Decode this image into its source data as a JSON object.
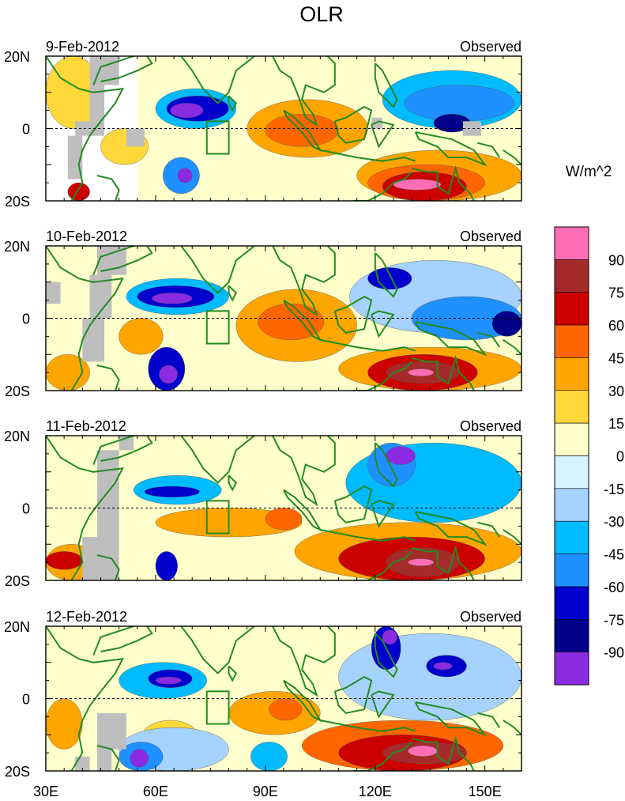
{
  "chart_data": {
    "type": "heatmap",
    "title": "OLR",
    "units_label": "W/m^2",
    "panel_label_right": "Observed",
    "x_tick_labels": [
      "30E",
      "60E",
      "90E",
      "120E",
      "150E"
    ],
    "x_tick_values": [
      30,
      60,
      90,
      120,
      150
    ],
    "xlim": [
      30,
      160
    ],
    "y_tick_labels": [
      "20N",
      "0",
      "20S"
    ],
    "y_tick_values": [
      20,
      0,
      -20
    ],
    "ylim": [
      -20,
      20
    ],
    "colorbar": {
      "labels": [
        "90",
        "75",
        "60",
        "45",
        "30",
        "15",
        "0",
        "-15",
        "-30",
        "-45",
        "-60",
        "-75",
        "-90"
      ],
      "levels": [
        90,
        75,
        60,
        45,
        30,
        15,
        0,
        -15,
        -30,
        -45,
        -60,
        -75,
        -90
      ],
      "colors": [
        "#ff6eb4",
        "#a52a2a",
        "#cc0000",
        "#ff6600",
        "#ffa500",
        "#ffd83a",
        "#ffffcc",
        "#d4f4ff",
        "#a6d2ff",
        "#00bbff",
        "#1e90ff",
        "#0000cd",
        "#00008b",
        "#8a2be2"
      ]
    },
    "missing_color": "#bebebe",
    "coast_color": "#228b22",
    "box_region": {
      "lon": [
        74,
        80
      ],
      "lat": [
        -7,
        2
      ]
    },
    "panels": [
      {
        "date": "9-Feb-2012",
        "blobs": [
          {
            "lon": [
              55,
              160
            ],
            "lat": [
              -20,
              20
            ],
            "v": 10
          },
          {
            "lon": [
              30,
              45
            ],
            "lat": [
              0,
              20
            ],
            "v": 25
          },
          {
            "lon": [
              45,
              58
            ],
            "lat": [
              -10,
              0
            ],
            "v": 28
          },
          {
            "lon": [
              85,
              118
            ],
            "lat": [
              -8,
              8
            ],
            "v": 32
          },
          {
            "lon": [
              90,
              110
            ],
            "lat": [
              -5,
              4
            ],
            "v": 48
          },
          {
            "lon": [
              115,
              160
            ],
            "lat": [
              -20,
              -6
            ],
            "v": 35
          },
          {
            "lon": [
              118,
              150
            ],
            "lat": [
              -20,
              -10
            ],
            "v": 55
          },
          {
            "lon": [
              122,
              145
            ],
            "lat": [
              -20,
              -12
            ],
            "v": 72
          },
          {
            "lon": [
              125,
              138
            ],
            "lat": [
              -17,
              -14
            ],
            "v": 95
          },
          {
            "lon": [
              60,
              82
            ],
            "lat": [
              0,
              11
            ],
            "v": -35
          },
          {
            "lon": [
              63,
              80
            ],
            "lat": [
              2,
              9
            ],
            "v": -65
          },
          {
            "lon": [
              64,
              73
            ],
            "lat": [
              3,
              7
            ],
            "v": -95
          },
          {
            "lon": [
              62,
              72
            ],
            "lat": [
              -18,
              -8
            ],
            "v": -60
          },
          {
            "lon": [
              66,
              70
            ],
            "lat": [
              -15,
              -11
            ],
            "v": -95
          },
          {
            "lon": [
              122,
              160
            ],
            "lat": [
              0,
              16
            ],
            "v": -32
          },
          {
            "lon": [
              128,
              158
            ],
            "lat": [
              2,
              12
            ],
            "v": -55
          },
          {
            "lon": [
              136,
              146
            ],
            "lat": [
              -1,
              4
            ],
            "v": -80
          },
          {
            "lon": [
              36,
              42
            ],
            "lat": [
              -20,
              -15
            ],
            "v": 62
          }
        ],
        "missing": [
          {
            "lon": [
              42,
              50
            ],
            "lat": [
              12,
              20
            ]
          },
          {
            "lon": [
              42,
              46
            ],
            "lat": [
              2,
              12
            ]
          },
          {
            "lon": [
              38,
              46
            ],
            "lat": [
              -2,
              2
            ]
          },
          {
            "lon": [
              36,
              40
            ],
            "lat": [
              -14,
              -2
            ]
          },
          {
            "lon": [
              52,
              57
            ],
            "lat": [
              -5,
              0
            ]
          },
          {
            "lon": [
              144,
              149
            ],
            "lat": [
              -2,
              2
            ]
          },
          {
            "lon": [
              119,
              122
            ],
            "lat": [
              0,
              3
            ]
          }
        ]
      },
      {
        "date": "10-Feb-2012",
        "blobs": [
          {
            "lon": [
              30,
              160
            ],
            "lat": [
              -20,
              20
            ],
            "v": 8
          },
          {
            "lon": [
              30,
              42
            ],
            "lat": [
              -20,
              -10
            ],
            "v": 35
          },
          {
            "lon": [
              50,
              62
            ],
            "lat": [
              -10,
              0
            ],
            "v": 30
          },
          {
            "lon": [
              82,
              115
            ],
            "lat": [
              -12,
              8
            ],
            "v": 38
          },
          {
            "lon": [
              88,
              106
            ],
            "lat": [
              -6,
              4
            ],
            "v": 58
          },
          {
            "lon": [
              110,
              160
            ],
            "lat": [
              -20,
              -8
            ],
            "v": 40
          },
          {
            "lon": [
              118,
              148
            ],
            "lat": [
              -20,
              -10
            ],
            "v": 60
          },
          {
            "lon": [
              123,
              143
            ],
            "lat": [
              -18,
              -12
            ],
            "v": 78
          },
          {
            "lon": [
              129,
              136
            ],
            "lat": [
              -16,
              -14
            ],
            "v": 95
          },
          {
            "lon": [
              52,
              80
            ],
            "lat": [
              1,
              11
            ],
            "v": -40
          },
          {
            "lon": [
              55,
              76
            ],
            "lat": [
              3,
              9
            ],
            "v": -70
          },
          {
            "lon": [
              59,
              70
            ],
            "lat": [
              4,
              7
            ],
            "v": -95
          },
          {
            "lon": [
              58,
              68
            ],
            "lat": [
              -20,
              -8
            ],
            "v": -62
          },
          {
            "lon": [
              61,
              66
            ],
            "lat": [
              -18,
              -13
            ],
            "v": -95
          },
          {
            "lon": [
              113,
              160
            ],
            "lat": [
              -4,
              16
            ],
            "v": -30
          },
          {
            "lon": [
              118,
              130
            ],
            "lat": [
              8,
              14
            ],
            "v": -65
          },
          {
            "lon": [
              130,
              160
            ],
            "lat": [
              -6,
              6
            ],
            "v": -55
          },
          {
            "lon": [
              152,
              160
            ],
            "lat": [
              -5,
              2
            ],
            "v": -80
          }
        ],
        "missing": [
          {
            "lon": [
              44,
              52
            ],
            "lat": [
              12,
              20
            ]
          },
          {
            "lon": [
              42,
              48
            ],
            "lat": [
              0,
              12
            ]
          },
          {
            "lon": [
              40,
              46
            ],
            "lat": [
              -12,
              0
            ]
          },
          {
            "lon": [
              30,
              34
            ],
            "lat": [
              4,
              10
            ]
          }
        ]
      },
      {
        "date": "11-Feb-2012",
        "blobs": [
          {
            "lon": [
              30,
              160
            ],
            "lat": [
              -20,
              20
            ],
            "v": 8
          },
          {
            "lon": [
              30,
              44
            ],
            "lat": [
              -20,
              -10
            ],
            "v": 40
          },
          {
            "lon": [
              30,
              40
            ],
            "lat": [
              -17,
              -12
            ],
            "v": 62
          },
          {
            "lon": [
              60,
              100
            ],
            "lat": [
              -8,
              0
            ],
            "v": 30
          },
          {
            "lon": [
              90,
              100
            ],
            "lat": [
              -6,
              0
            ],
            "v": 58
          },
          {
            "lon": [
              98,
              160
            ],
            "lat": [
              -20,
              -4
            ],
            "v": 38
          },
          {
            "lon": [
              110,
              150
            ],
            "lat": [
              -20,
              -8
            ],
            "v": 60
          },
          {
            "lon": [
              123,
              143
            ],
            "lat": [
              -19,
              -11
            ],
            "v": 78
          },
          {
            "lon": [
              129,
              136
            ],
            "lat": [
              -16,
              -14
            ],
            "v": 95
          },
          {
            "lon": [
              54,
              78
            ],
            "lat": [
              1,
              9
            ],
            "v": -40
          },
          {
            "lon": [
              57,
              72
            ],
            "lat": [
              3,
              6
            ],
            "v": -70
          },
          {
            "lon": [
              60,
              66
            ],
            "lat": [
              -20,
              -12
            ],
            "v": -68
          },
          {
            "lon": [
              112,
              160
            ],
            "lat": [
              -4,
              18
            ],
            "v": -32
          },
          {
            "lon": [
              118,
              131
            ],
            "lat": [
              6,
              18
            ],
            "v": -60
          },
          {
            "lon": [
              123,
              131
            ],
            "lat": [
              12,
              17
            ],
            "v": -95
          }
        ],
        "missing": [
          {
            "lon": [
              50,
              54
            ],
            "lat": [
              16,
              20
            ]
          },
          {
            "lon": [
              44,
              50
            ],
            "lat": [
              -20,
              16
            ]
          },
          {
            "lon": [
              40,
              46
            ],
            "lat": [
              -20,
              -8
            ]
          }
        ]
      },
      {
        "date": "12-Feb-2012",
        "blobs": [
          {
            "lon": [
              30,
              160
            ],
            "lat": [
              -20,
              20
            ],
            "v": 10
          },
          {
            "lon": [
              30,
              40
            ],
            "lat": [
              -14,
              0
            ],
            "v": 30
          },
          {
            "lon": [
              56,
              72
            ],
            "lat": [
              -16,
              -6
            ],
            "v": 28
          },
          {
            "lon": [
              80,
              105
            ],
            "lat": [
              -10,
              2
            ],
            "v": 35
          },
          {
            "lon": [
              91,
              100
            ],
            "lat": [
              -6,
              0
            ],
            "v": 55
          },
          {
            "lon": [
              100,
              155
            ],
            "lat": [
              -20,
              -6
            ],
            "v": 45
          },
          {
            "lon": [
              110,
              145
            ],
            "lat": [
              -20,
              -10
            ],
            "v": 62
          },
          {
            "lon": [
              122,
              145
            ],
            "lat": [
              -18,
              -12
            ],
            "v": 78
          },
          {
            "lon": [
              129,
              137
            ],
            "lat": [
              -16,
              -13
            ],
            "v": 95
          },
          {
            "lon": [
              50,
              74
            ],
            "lat": [
              0,
              10
            ],
            "v": -40
          },
          {
            "lon": [
              58,
              70
            ],
            "lat": [
              3,
              8
            ],
            "v": -75
          },
          {
            "lon": [
              60,
              67
            ],
            "lat": [
              4,
              6
            ],
            "v": -95
          },
          {
            "lon": [
              50,
              80
            ],
            "lat": [
              -20,
              -8
            ],
            "v": -20
          },
          {
            "lon": [
              50,
              62
            ],
            "lat": [
              -20,
              -12
            ],
            "v": -60
          },
          {
            "lon": [
              53,
              58
            ],
            "lat": [
              -19,
              -14
            ],
            "v": -95
          },
          {
            "lon": [
              86,
              96
            ],
            "lat": [
              -20,
              -12
            ],
            "v": -45
          },
          {
            "lon": [
              110,
              160
            ],
            "lat": [
              -6,
              18
            ],
            "v": -30
          },
          {
            "lon": [
              119,
              127
            ],
            "lat": [
              8,
              20
            ],
            "v": -70
          },
          {
            "lon": [
              122,
              126
            ],
            "lat": [
              15,
              19
            ],
            "v": -95
          },
          {
            "lon": [
              134,
              145
            ],
            "lat": [
              6,
              12
            ],
            "v": -75
          },
          {
            "lon": [
              136,
              141
            ],
            "lat": [
              8,
              10
            ],
            "v": -95
          }
        ],
        "missing": [
          {
            "lon": [
              44,
              52
            ],
            "lat": [
              -14,
              -4
            ]
          },
          {
            "lon": [
              44,
              48
            ],
            "lat": [
              -20,
              -14
            ]
          },
          {
            "lon": [
              38,
              42
            ],
            "lat": [
              -20,
              -16
            ]
          }
        ]
      }
    ]
  }
}
